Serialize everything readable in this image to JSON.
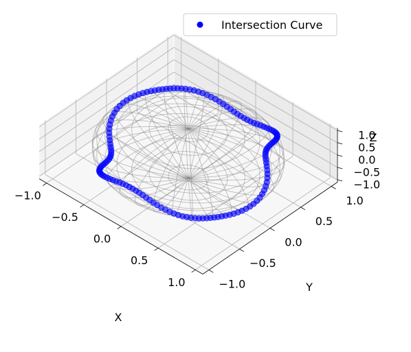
{
  "chart_data": {
    "type": "scatter",
    "projection": "3d",
    "title": "",
    "xlabel": "X",
    "ylabel": "Y",
    "zlabel": "Z",
    "xlim": [
      -1.1,
      1.1
    ],
    "ylim": [
      -1.1,
      1.1
    ],
    "zlim": [
      -1.1,
      1.1
    ],
    "xticks": [
      -1.0,
      -0.5,
      0.0,
      0.5,
      1.0
    ],
    "yticks": [
      -1.0,
      -0.5,
      0.0,
      0.5,
      1.0
    ],
    "zticks": [
      -1.0,
      -0.5,
      0.0,
      0.5,
      1.0
    ],
    "xtick_labels": [
      "−1.0",
      "−0.5",
      "0.0",
      "0.5",
      "1.0"
    ],
    "ytick_labels": [
      "−1.0",
      "−0.5",
      "0.0",
      "0.5",
      "1.0"
    ],
    "ztick_labels": [
      "−1.0",
      "−0.5",
      "0.0",
      "0.5",
      "1.0"
    ],
    "grid": true,
    "legend": {
      "position": "top-right",
      "entries": [
        "Intersection Curve"
      ]
    },
    "surface": {
      "kind": "unit-sphere-wireframe",
      "color": "#808080",
      "alpha": 0.45
    },
    "series": [
      {
        "name": "Intersection Curve",
        "color": "#0000ff",
        "alpha": 0.6,
        "curve": {
          "kind": "sphere-intersection",
          "z_amplitude": 0.42,
          "z_frequency": 3
        },
        "num_points": 140
      }
    ]
  }
}
